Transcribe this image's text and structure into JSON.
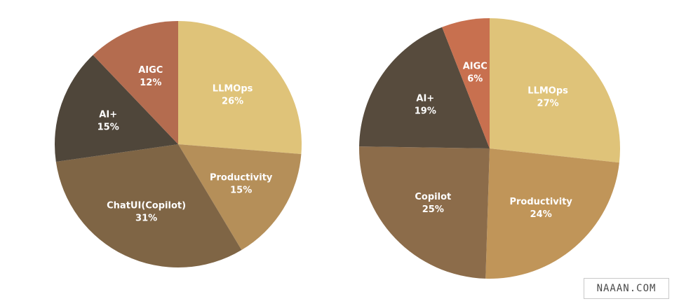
{
  "chart_data": [
    {
      "type": "pie",
      "slices": [
        {
          "label": "LLMOps",
          "value_label": "26%",
          "value": 26,
          "color": "#dfc379"
        },
        {
          "label": "Productivity",
          "value_label": "15%",
          "value": 15,
          "color": "#b58f59"
        },
        {
          "label": "ChatUI(Copilot)",
          "value_label": "31%",
          "value": 31,
          "color": "#7f6545"
        },
        {
          "label": "AI+",
          "value_label": "15%",
          "value": 15,
          "color": "#4f463a"
        },
        {
          "label": "AIGC",
          "value_label": "12%",
          "value": 12,
          "color": "#b46c4f"
        }
      ]
    },
    {
      "type": "pie",
      "slices": [
        {
          "label": "LLMOps",
          "value_label": "27%",
          "value": 27,
          "color": "#dfc379"
        },
        {
          "label": "Productivity",
          "value_label": "24%",
          "value": 24,
          "color": "#c09559"
        },
        {
          "label": "Copilot",
          "value_label": "25%",
          "value": 25,
          "color": "#8c6c4a"
        },
        {
          "label": "AI+",
          "value_label": "19%",
          "value": 19,
          "color": "#574b3d"
        },
        {
          "label": "AIGC",
          "value_label": "6%",
          "value": 6,
          "color": "#c8704f"
        }
      ]
    }
  ],
  "watermark": "NAAAN.COM"
}
